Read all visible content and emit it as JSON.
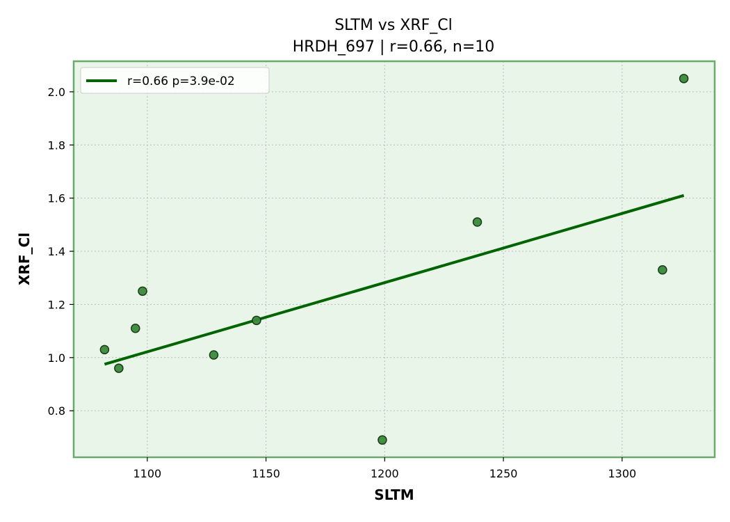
{
  "chart_data": {
    "type": "scatter",
    "title": "SLTM vs XRF_Cl",
    "subtitle": "HRDH_697 | r=0.66, n=10",
    "xlabel": "SLTM",
    "ylabel": "XRF_Cl",
    "xlim": [
      1069,
      1339
    ],
    "ylim": [
      0.625,
      2.115
    ],
    "xticks": [
      1100,
      1150,
      1200,
      1250,
      1300
    ],
    "yticks": [
      0.8,
      1.0,
      1.2,
      1.4,
      1.6,
      1.8,
      2.0
    ],
    "xtick_labels": [
      "1100",
      "1150",
      "1200",
      "1250",
      "1300"
    ],
    "ytick_labels": [
      "0.8",
      "1.0",
      "1.2",
      "1.4",
      "1.6",
      "1.8",
      "2.0"
    ],
    "grid": true,
    "legend_position": "top-left",
    "series": [
      {
        "x": [
          1082,
          1088,
          1095,
          1098,
          1128,
          1146,
          1199,
          1239,
          1317,
          1326
        ],
        "y": [
          1.03,
          0.96,
          1.11,
          1.25,
          1.01,
          1.14,
          0.69,
          1.51,
          1.33,
          2.05
        ],
        "color": "#3a8a3a"
      }
    ],
    "fit_line": {
      "name": "r=0.66  p=3.9e-02",
      "x": [
        1082,
        1326
      ],
      "y": [
        0.975,
        1.61
      ],
      "color": "#006400"
    },
    "colors": {
      "plot_background": "#e8f5e8",
      "axes_edge": "#6aaa6a",
      "grid": "#bbbbbb"
    }
  }
}
